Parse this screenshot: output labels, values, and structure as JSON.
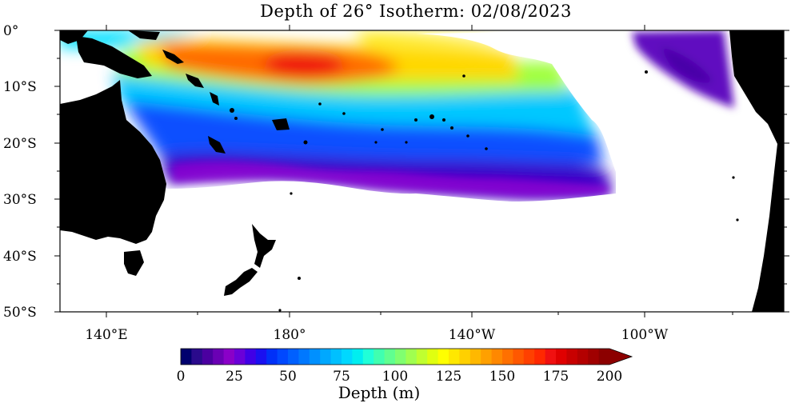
{
  "title": "Depth of 26° Isotherm: 02/08/2023",
  "y_axis_labels": [
    "0°",
    "10°S",
    "20°S",
    "30°S",
    "40°S",
    "50°S"
  ],
  "x_axis_labels": [
    "140°E",
    "180°",
    "140°W",
    "100°W"
  ],
  "colorbar": {
    "title": "Depth (m)",
    "tick_labels": [
      "0",
      "25",
      "50",
      "75",
      "100",
      "125",
      "150",
      "175",
      "200"
    ],
    "range": [
      0,
      200
    ],
    "steps": 40,
    "colors": [
      "#00006e",
      "#2a0a8c",
      "#4b00a0",
      "#6a00b4",
      "#8a00c8",
      "#6a00d8",
      "#4000e6",
      "#1a10f0",
      "#0030f8",
      "#0048ff",
      "#0060ff",
      "#0078ff",
      "#0090ff",
      "#00a8ff",
      "#00c0ff",
      "#00d8ff",
      "#00eef0",
      "#20ffd8",
      "#40ffb0",
      "#60ff90",
      "#80ff70",
      "#a0ff50",
      "#c0ff30",
      "#e0ff10",
      "#ffff00",
      "#ffe800",
      "#ffd000",
      "#ffb800",
      "#ffa000",
      "#ff8800",
      "#ff7000",
      "#ff5800",
      "#ff4000",
      "#ff2800",
      "#f01010",
      "#e00000",
      "#c80000",
      "#b40000",
      "#a00000",
      "#8c0000"
    ]
  },
  "colors": {
    "land": "#000000",
    "ocean_no_data": "#ffffff",
    "shallow": "#6a00d8",
    "deep": "#ff4000"
  }
}
